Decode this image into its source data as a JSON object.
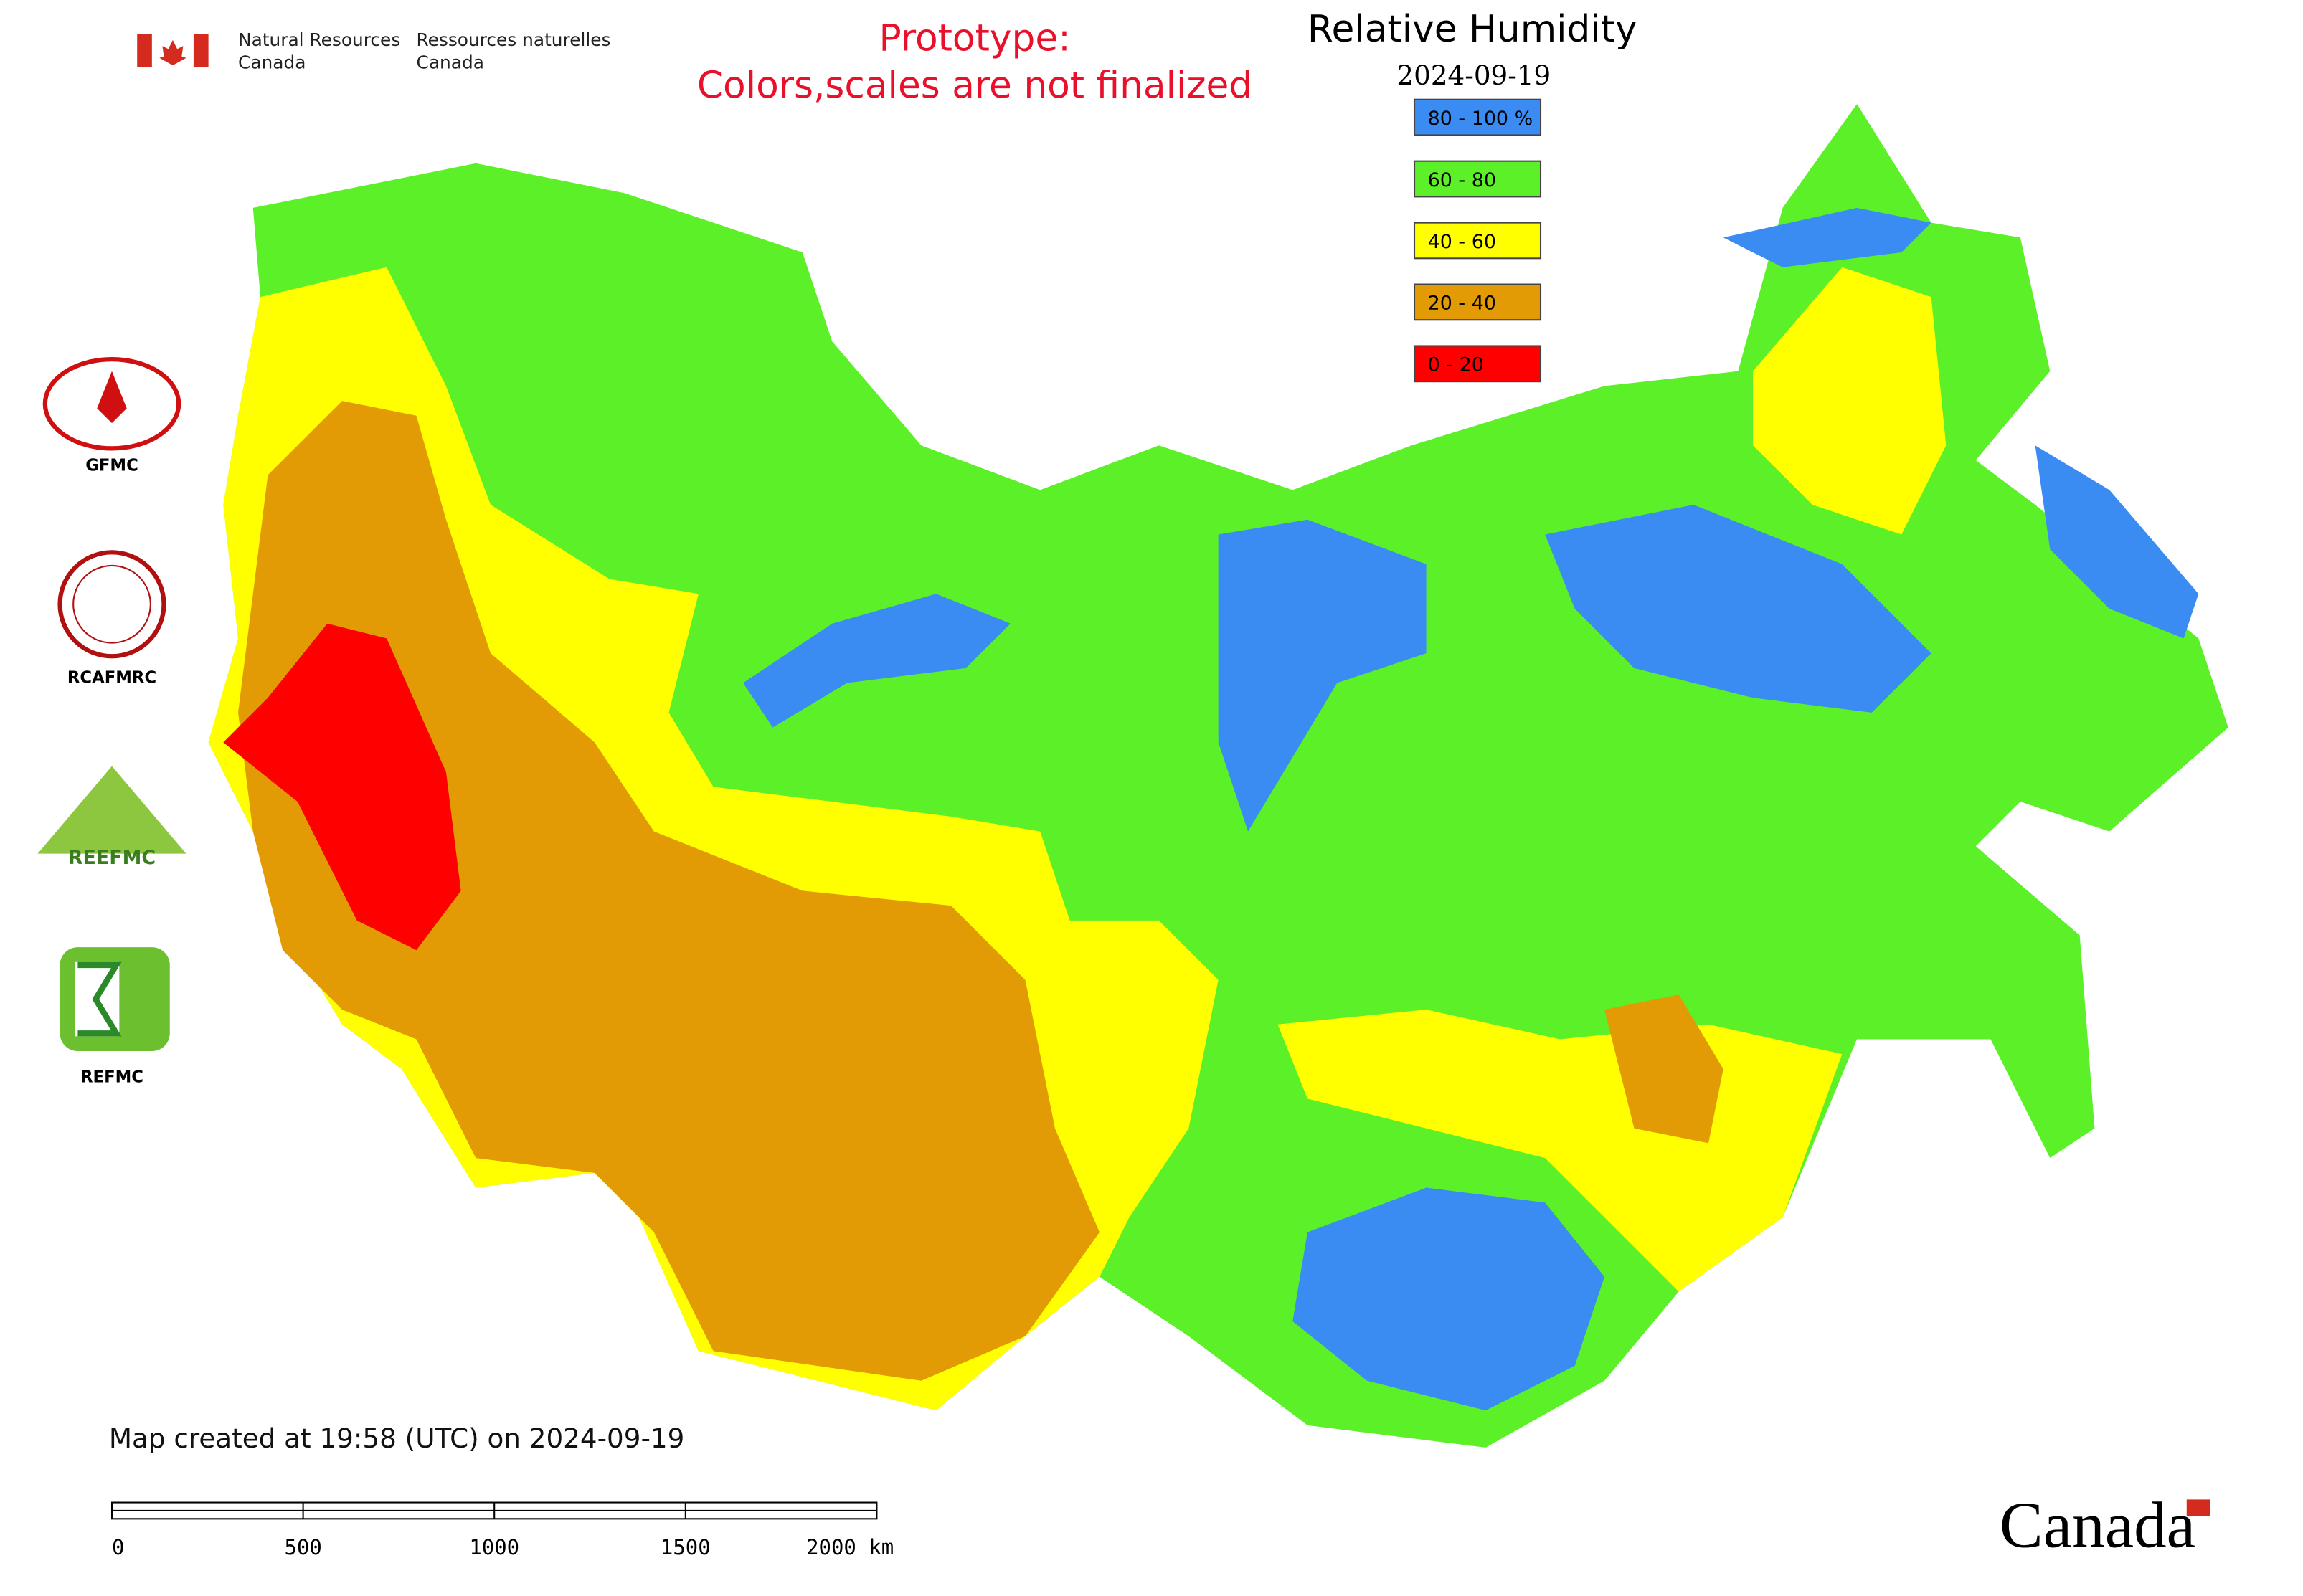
{
  "header": {
    "agency_en": [
      "Natural Resources",
      "Canada"
    ],
    "agency_fr": [
      "Ressources naturelles",
      "Canada"
    ],
    "notice": [
      "Prototype:",
      "Colors,scales are not finalized"
    ],
    "title": "Relative Humidity",
    "date": "2024-09-19"
  },
  "legend": [
    {
      "label": "80 - 100 %",
      "color": "#3a8cf2"
    },
    {
      "label": "60 - 80",
      "color": "#5cf028"
    },
    {
      "label": "40 - 60",
      "color": "#ffff00"
    },
    {
      "label": "20 - 40",
      "color": "#e29a05"
    },
    {
      "label": "0 - 20",
      "color": "#ff0000"
    }
  ],
  "logos": [
    "GFMC",
    "RCAFMRC",
    "REFMC"
  ],
  "footer": {
    "created": "Map created at 19:58 (UTC) on 2024-09-19",
    "scale": [
      "0",
      "500",
      "1000",
      "1500",
      "2000 km"
    ],
    "wordmark": "Canada"
  }
}
